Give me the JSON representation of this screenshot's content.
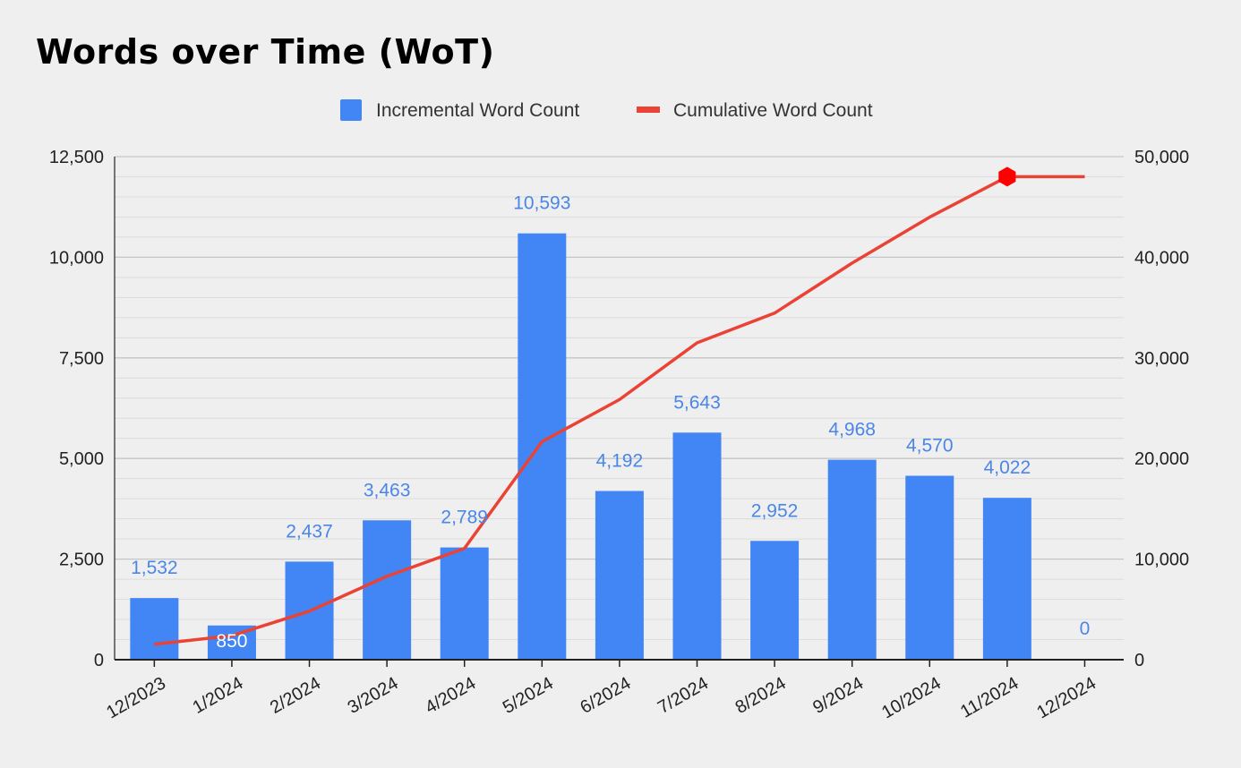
{
  "chart_data": {
    "type": "bar",
    "title": "Words over Time (WoT)",
    "categories": [
      "12/2023",
      "1/2024",
      "2/2024",
      "3/2024",
      "4/2024",
      "5/2024",
      "6/2024",
      "7/2024",
      "8/2024",
      "9/2024",
      "10/2024",
      "11/2024",
      "12/2024"
    ],
    "series": [
      {
        "name": "Incremental Word Count",
        "type": "bar",
        "axis": "left",
        "color": "#4285f4",
        "values": [
          1532,
          850,
          2437,
          3463,
          2789,
          10593,
          4192,
          5643,
          2952,
          4968,
          4570,
          4022,
          0
        ],
        "labels": [
          "1,532",
          "850",
          "2,437",
          "3,463",
          "2,789",
          "10,593",
          "4,192",
          "5,643",
          "2,952",
          "4,968",
          "4,570",
          "4,022",
          "0"
        ]
      },
      {
        "name": "Cumulative Word Count",
        "type": "line",
        "axis": "right",
        "color": "#ea4335",
        "values": [
          1532,
          2382,
          4819,
          8282,
          11071,
          21664,
          25856,
          31499,
          34451,
          39419,
          43989,
          48011,
          48011
        ],
        "marker_index": 11,
        "marker_color": "#ff0000"
      }
    ],
    "y_left": {
      "min": 0,
      "max": 12500,
      "ticks": [
        0,
        2500,
        5000,
        7500,
        10000,
        12500
      ],
      "tick_labels": [
        "0",
        "2,500",
        "5,000",
        "7,500",
        "10,000",
        "12,500"
      ]
    },
    "y_right": {
      "min": 0,
      "max": 50000,
      "ticks": [
        0,
        10000,
        20000,
        30000,
        40000,
        50000
      ],
      "tick_labels": [
        "0",
        "10,000",
        "20,000",
        "30,000",
        "40,000",
        "50,000"
      ]
    },
    "grid": true,
    "legend_position": "top"
  }
}
